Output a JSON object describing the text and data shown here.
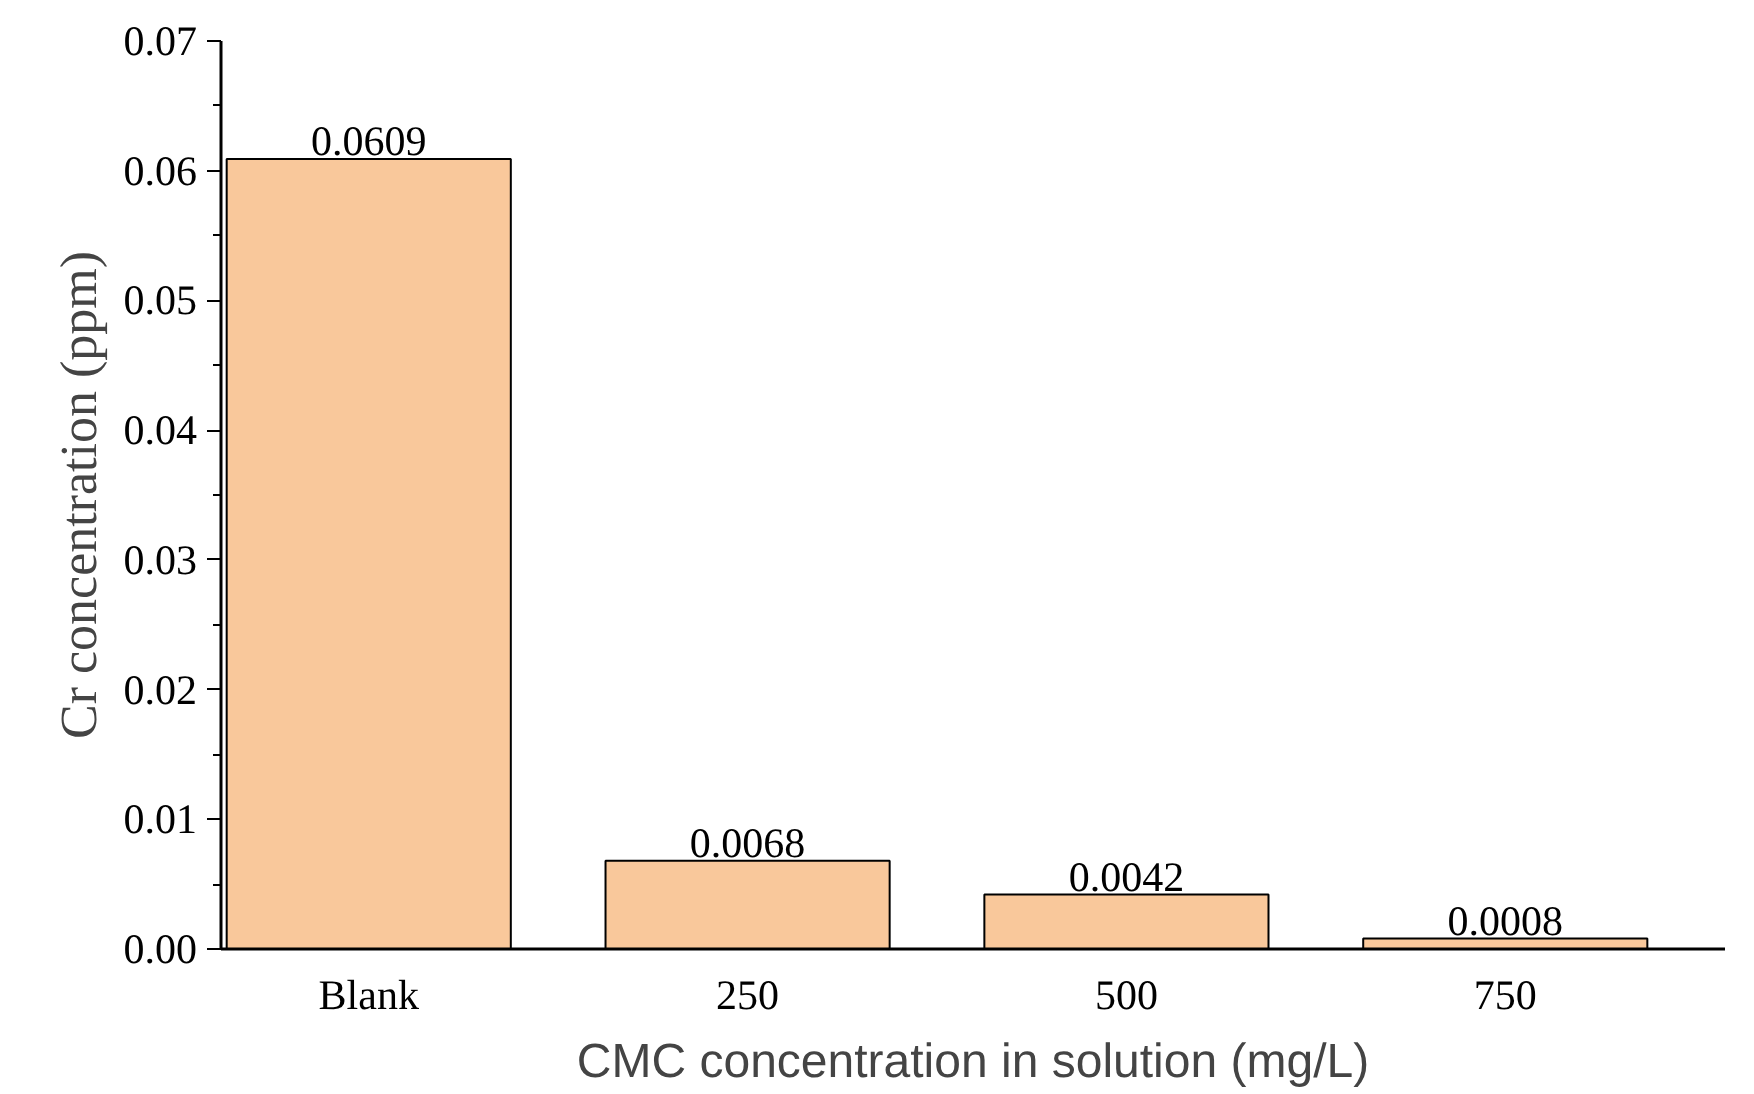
{
  "chart_data": {
    "type": "bar",
    "xlabel": "CMC concentration in solution (mg/L)",
    "ylabel": "Cr concentration (ppm)",
    "categories": [
      "Blank",
      "250",
      "500",
      "750"
    ],
    "values": [
      0.0609,
      0.0068,
      0.0042,
      0.0008
    ],
    "color": "#f9c89b",
    "ylim": [
      0,
      0.07
    ],
    "yticks": [
      {
        "value": 0,
        "label": "0.00"
      },
      0.01,
      0.02,
      0.03,
      0.04,
      0.05,
      0.06,
      0.07
    ],
    "data_labels": true,
    "grid": false
  }
}
